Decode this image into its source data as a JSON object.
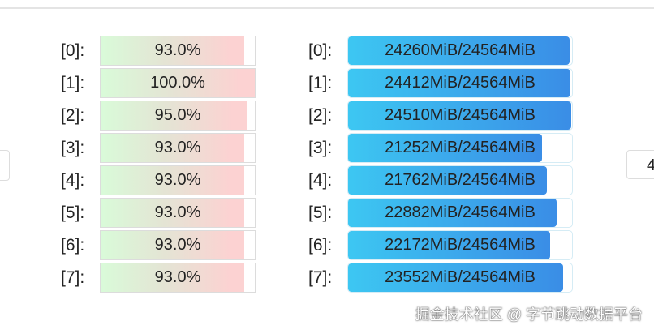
{
  "gpu_util": [
    {
      "label": "[0]:",
      "value": "93.0%",
      "percent": 93.0
    },
    {
      "label": "[1]:",
      "value": "100.0%",
      "percent": 100.0
    },
    {
      "label": "[2]:",
      "value": "95.0%",
      "percent": 95.0
    },
    {
      "label": "[3]:",
      "value": "93.0%",
      "percent": 93.0
    },
    {
      "label": "[4]:",
      "value": "93.0%",
      "percent": 93.0
    },
    {
      "label": "[5]:",
      "value": "93.0%",
      "percent": 93.0
    },
    {
      "label": "[6]:",
      "value": "93.0%",
      "percent": 93.0
    },
    {
      "label": "[7]:",
      "value": "93.0%",
      "percent": 93.0
    }
  ],
  "gpu_mem": [
    {
      "label": "[0]:",
      "value": "24260MiB/24564MiB",
      "used": 24260,
      "total": 24564
    },
    {
      "label": "[1]:",
      "value": "24412MiB/24564MiB",
      "used": 24412,
      "total": 24564
    },
    {
      "label": "[2]:",
      "value": "24510MiB/24564MiB",
      "used": 24510,
      "total": 24564
    },
    {
      "label": "[3]:",
      "value": "21252MiB/24564MiB",
      "used": 21252,
      "total": 24564
    },
    {
      "label": "[4]:",
      "value": "21762MiB/24564MiB",
      "used": 21762,
      "total": 24564
    },
    {
      "label": "[5]:",
      "value": "22882MiB/24564MiB",
      "used": 22882,
      "total": 24564
    },
    {
      "label": "[6]:",
      "value": "22172MiB/24564MiB",
      "used": 22172,
      "total": 24564
    },
    {
      "label": "[7]:",
      "value": "23552MiB/24564MiB",
      "used": 23552,
      "total": 24564
    }
  ],
  "right_edge_text": "4",
  "watermark": "掘金技术社区 @ 字节跳动数据平台",
  "colors": {
    "util_start": "#d9fbd9",
    "util_end": "#fcd2d2",
    "mem_start": "#3dc7f2",
    "mem_end": "#3a8de6"
  }
}
